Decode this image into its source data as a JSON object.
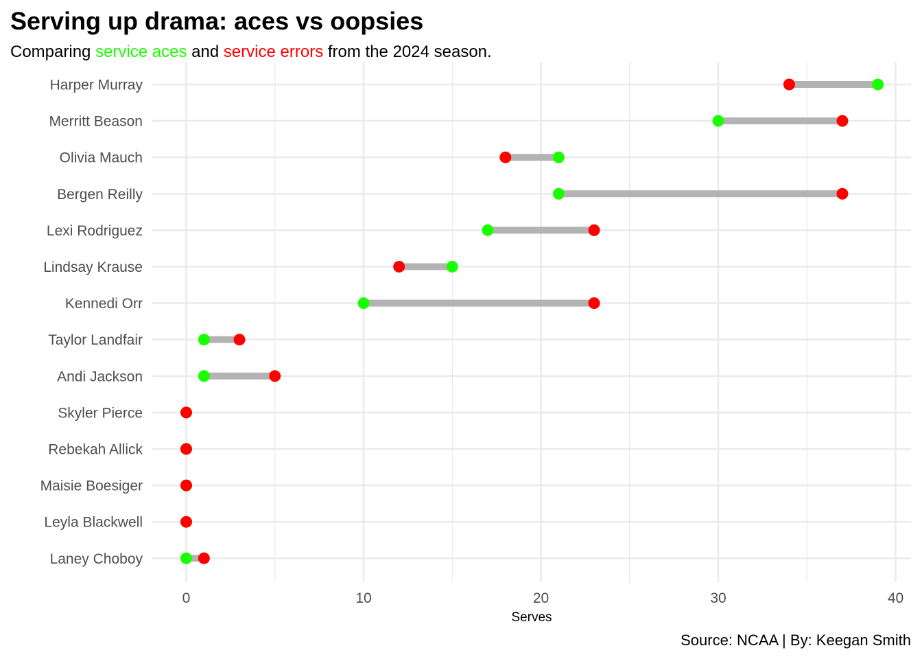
{
  "header": {
    "title": "Serving up drama: aces vs oopsies",
    "subtitle_prefix": "Comparing ",
    "subtitle_aces": "service aces",
    "subtitle_mid": " and ",
    "subtitle_errors": "service errors",
    "subtitle_suffix": " from the 2024 season."
  },
  "caption": "Source: NCAA | By: Keegan Smith",
  "colors": {
    "aces": "#1aff00",
    "errors": "#ff0000",
    "segment": "#b3b3b3",
    "grid": "#ebebeb"
  },
  "chart_data": {
    "type": "dumbbell",
    "xlabel": "Serves",
    "ylabel": "",
    "xlim": [
      -2,
      41
    ],
    "x_ticks": [
      0,
      10,
      20,
      30,
      40
    ],
    "x_minor_ticks": [
      5,
      15,
      25,
      35
    ],
    "grid": true,
    "legend": "none",
    "series": [
      {
        "key": "aces",
        "name": "service aces"
      },
      {
        "key": "errors",
        "name": "service errors"
      }
    ],
    "players": [
      {
        "name": "Harper Murray",
        "aces": 39,
        "errors": 34
      },
      {
        "name": "Merritt Beason",
        "aces": 30,
        "errors": 37
      },
      {
        "name": "Olivia Mauch",
        "aces": 21,
        "errors": 18
      },
      {
        "name": "Bergen Reilly",
        "aces": 21,
        "errors": 37
      },
      {
        "name": "Lexi Rodriguez",
        "aces": 17,
        "errors": 23
      },
      {
        "name": "Lindsay Krause",
        "aces": 15,
        "errors": 12
      },
      {
        "name": "Kennedi Orr",
        "aces": 10,
        "errors": 23
      },
      {
        "name": "Taylor Landfair",
        "aces": 1,
        "errors": 3
      },
      {
        "name": "Andi Jackson",
        "aces": 1,
        "errors": 5
      },
      {
        "name": "Skyler Pierce",
        "aces": 0,
        "errors": 0
      },
      {
        "name": "Rebekah Allick",
        "aces": 0,
        "errors": 0
      },
      {
        "name": "Maisie Boesiger",
        "aces": 0,
        "errors": 0
      },
      {
        "name": "Leyla Blackwell",
        "aces": 0,
        "errors": 0
      },
      {
        "name": "Laney Choboy",
        "aces": 0,
        "errors": 1
      }
    ]
  }
}
